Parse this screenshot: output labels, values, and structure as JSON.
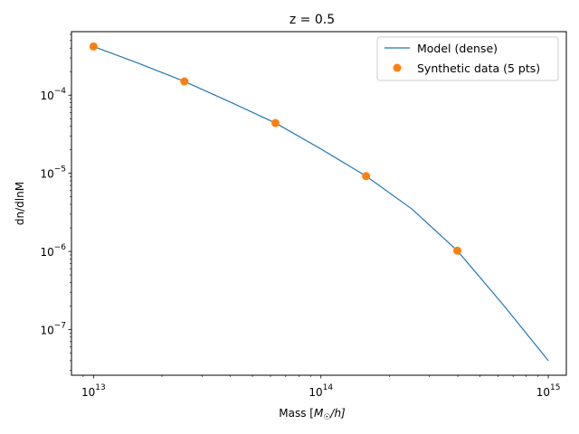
{
  "chart_data": {
    "type": "line",
    "title": "z = 0.5",
    "xlabel": {
      "prefix": "Mass [",
      "math": "M",
      "sub": "☉",
      "suffix": "/h]"
    },
    "ylabel": "dn/dlnM",
    "xscale": "log",
    "yscale": "log",
    "xlim": [
      8000000000000.0,
      1200000000000000.0
    ],
    "ylim": [
      2.6e-08,
      0.00065
    ],
    "x_ticks": [
      {
        "value": 10000000000000.0,
        "base": "10",
        "exp": "13"
      },
      {
        "value": 100000000000000.0,
        "base": "10",
        "exp": "14"
      },
      {
        "value": 1000000000000000.0,
        "base": "10",
        "exp": "15"
      }
    ],
    "y_ticks": [
      {
        "value": 1e-07,
        "base": "10",
        "exp": "−7"
      },
      {
        "value": 1e-06,
        "base": "10",
        "exp": "−6"
      },
      {
        "value": 1e-05,
        "base": "10",
        "exp": "−5"
      },
      {
        "value": 0.0001,
        "base": "10",
        "exp": "−4"
      }
    ],
    "grid": false,
    "legend_position": "top-right",
    "series": [
      {
        "name": "Model (dense)",
        "kind": "line",
        "color": "#1f77b4",
        "x": [
          10000000000000.0,
          15800000000000.0,
          25100000000000.0,
          39800000000000.0,
          63100000000000.0,
          100000000000000.0,
          158000000000000.0,
          251000000000000.0,
          398000000000000.0,
          631000000000000.0,
          1000000000000000.0
        ],
        "y": [
          0.00042,
          0.000255,
          0.00015,
          8.2e-05,
          4.4e-05,
          2.05e-05,
          9.2e-06,
          3.5e-06,
          1.02e-06,
          2.1e-07,
          4e-08
        ]
      },
      {
        "name": "Synthetic data (5 pts)",
        "kind": "scatter",
        "color": "#ff7f0e",
        "x": [
          10000000000000.0,
          25100000000000.0,
          63100000000000.0,
          158000000000000.0,
          398000000000000.0
        ],
        "y": [
          0.00042,
          0.00015,
          4.4e-05,
          9.2e-06,
          1.02e-06
        ]
      }
    ]
  }
}
